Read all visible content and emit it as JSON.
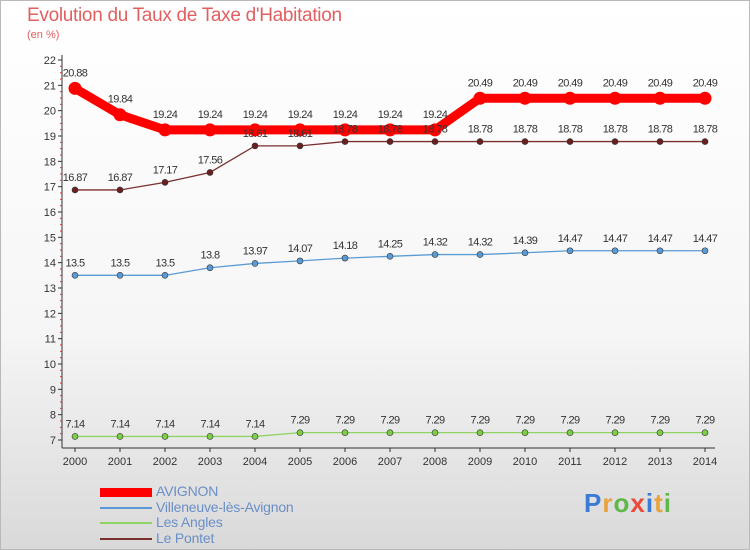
{
  "header": {
    "title": "Evolution du Taux de Taxe d'Habitation",
    "subtitle": "(en %)"
  },
  "logo": {
    "text": "Proxiti",
    "colors": [
      "#3a7bd5",
      "#e8a33c",
      "#5fb848",
      "#e94b3c",
      "#3a7bd5",
      "#e8a33c",
      "#5fb848"
    ]
  },
  "chart_data": {
    "type": "line",
    "title": "Evolution du Taux de Taxe d'Habitation",
    "subtitle": "(en %)",
    "xlabel": "",
    "ylabel": "",
    "ylim": [
      7,
      22
    ],
    "yticks": [
      7,
      8,
      9,
      10,
      11,
      12,
      13,
      14,
      15,
      16,
      17,
      18,
      19,
      20,
      21,
      22
    ],
    "grid": false,
    "legend_placement": "bottom-left",
    "x": [
      "2000",
      "2001",
      "2002",
      "2003",
      "2004",
      "2005",
      "2006",
      "2007",
      "2008",
      "2009",
      "2010",
      "2011",
      "2012",
      "2013",
      "2014"
    ],
    "series": [
      {
        "name": "AVIGNON",
        "color": "#ff0000",
        "marker_color": "#ff0000",
        "values": [
          20.88,
          19.84,
          19.24,
          19.24,
          19.24,
          19.24,
          19.24,
          19.24,
          19.24,
          20.49,
          20.49,
          20.49,
          20.49,
          20.49,
          20.49
        ],
        "labels": [
          "20.88",
          "19.84",
          "19.24",
          "19.24",
          "19.24",
          "19.24",
          "19.24",
          "19.24",
          "19.24",
          "20.49",
          "20.49",
          "20.49",
          "20.49",
          "20.49",
          "20.49"
        ]
      },
      {
        "name": "Villeneuve-lès-Avignon",
        "color": "#5b9bd5",
        "marker_color": "#5b9bd5",
        "values": [
          13.5,
          13.5,
          13.5,
          13.8,
          13.97,
          14.07,
          14.18,
          14.25,
          14.32,
          14.32,
          14.39,
          14.47,
          14.47,
          14.47,
          14.47
        ],
        "labels": [
          "13.5",
          "13.5",
          "13.5",
          "13.8",
          "13.97",
          "14.07",
          "14.18",
          "14.25",
          "14.32",
          "14.32",
          "14.39",
          "14.47",
          "14.47",
          "14.47",
          "14.47"
        ]
      },
      {
        "name": "Les Angles",
        "color": "#8fd462",
        "marker_color": "#7ccf45",
        "values": [
          7.14,
          7.14,
          7.14,
          7.14,
          7.14,
          7.29,
          7.29,
          7.29,
          7.29,
          7.29,
          7.29,
          7.29,
          7.29,
          7.29,
          7.29
        ],
        "labels": [
          "7.14",
          "7.14",
          "7.14",
          "7.14",
          "7.14",
          "7.29",
          "7.29",
          "7.29",
          "7.29",
          "7.29",
          "7.29",
          "7.29",
          "7.29",
          "7.29",
          "7.29"
        ]
      },
      {
        "name": "Le Pontet",
        "color": "#7a2e2e",
        "marker_color": "#6b1f1f",
        "values": [
          16.87,
          16.87,
          17.17,
          17.56,
          18.61,
          18.61,
          18.78,
          18.78,
          18.78,
          18.78,
          18.78,
          18.78,
          18.78,
          18.78,
          18.78
        ],
        "labels": [
          "16.87",
          "16.87",
          "17.17",
          "17.56",
          "18.61",
          "18.61",
          "18.78",
          "18.78",
          "18.78",
          "18.78",
          "18.78",
          "18.78",
          "18.78",
          "18.78",
          "18.78"
        ]
      }
    ]
  }
}
